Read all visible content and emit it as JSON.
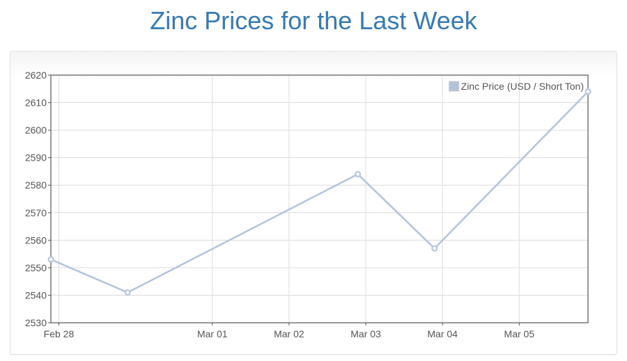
{
  "page": {
    "title": "Zinc Prices for the Last Week"
  },
  "colors": {
    "title": "#337ab7",
    "series": "#b0c4de",
    "grid": "#dcdcdc",
    "axis": "#545454"
  },
  "chart_data": {
    "type": "line",
    "title": "Zinc Prices for the Last Week",
    "xlabel": "",
    "ylabel": "",
    "x_ticks": [
      "Feb 28",
      "Mar 01",
      "Mar 02",
      "Mar 03",
      "Mar 04",
      "Mar 05"
    ],
    "y_ticks": [
      "2530",
      "2540",
      "2550",
      "2560",
      "2570",
      "2580",
      "2590",
      "2600",
      "2610",
      "2620"
    ],
    "ylim": [
      2530,
      2620
    ],
    "xlim": [
      "Feb 27 21:30",
      "Mar 05 21:30"
    ],
    "grid": true,
    "legend_position": "top-right",
    "series": [
      {
        "name": "Zinc Price (USD / Short Ton)",
        "points": [
          {
            "x": "Feb 27 21:30",
            "y": 2553
          },
          {
            "x": "Feb 28 21:30",
            "y": 2541
          },
          {
            "x": "Mar 02 21:30",
            "y": 2584
          },
          {
            "x": "Mar 03 21:30",
            "y": 2557
          },
          {
            "x": "Mar 05 21:30",
            "y": 2614
          }
        ]
      }
    ]
  }
}
